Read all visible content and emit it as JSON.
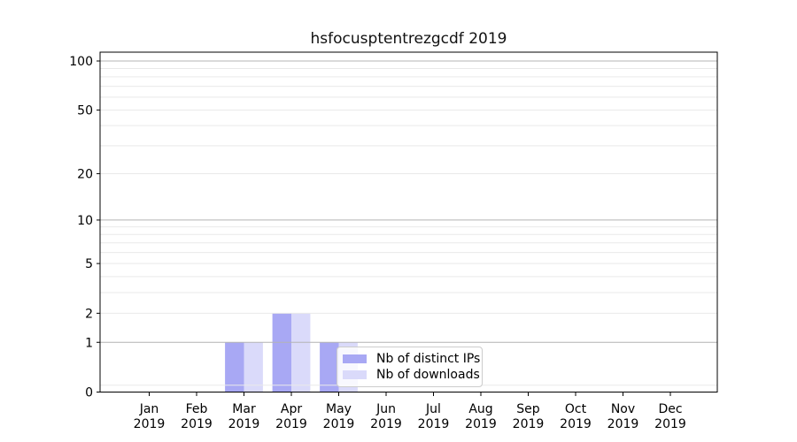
{
  "figure": {
    "title": "hsfocusptentrezgcdf 2019"
  },
  "legend": {
    "items": [
      {
        "label": "Nb of distinct IPs",
        "color": "#a8a8f4"
      },
      {
        "label": "Nb of downloads",
        "color": "#dadafa"
      }
    ]
  },
  "axes": {
    "y_tick_labels": [
      "0",
      "1",
      "2",
      "5",
      "10",
      "20",
      "50",
      "100"
    ],
    "x_tick_year": "2019",
    "x_tick_months": [
      "Jan",
      "Feb",
      "Mar",
      "Apr",
      "May",
      "Jun",
      "Jul",
      "Aug",
      "Sep",
      "Oct",
      "Nov",
      "Dec"
    ]
  },
  "colors": {
    "grid_major": "#b4b4b4",
    "grid_minor": "#e9e9e9",
    "axis_frame": "#000000",
    "text": "#000000",
    "background": "#ffffff"
  },
  "chart_data": {
    "type": "bar",
    "title": "hsfocusptentrezgcdf 2019",
    "categories": [
      "Jan 2019",
      "Feb 2019",
      "Mar 2019",
      "Apr 2019",
      "May 2019",
      "Jun 2019",
      "Jul 2019",
      "Aug 2019",
      "Sep 2019",
      "Oct 2019",
      "Nov 2019",
      "Dec 2019"
    ],
    "series": [
      {
        "name": "Nb of distinct IPs",
        "color": "#a8a8f4",
        "values": [
          0,
          0,
          1,
          2,
          1,
          0,
          0,
          0,
          0,
          0,
          0,
          0
        ]
      },
      {
        "name": "Nb of downloads",
        "color": "#dadafa",
        "values": [
          0,
          0,
          1,
          2,
          1,
          0,
          0,
          0,
          0,
          0,
          0,
          0
        ]
      }
    ],
    "xlabel": "",
    "ylabel": "",
    "yscale": "log1p",
    "ylim": [
      0,
      113
    ],
    "y_ticks": [
      0,
      1,
      2,
      5,
      10,
      20,
      50,
      100
    ],
    "y_major_gridlines": [
      1,
      10,
      100
    ],
    "y_minor_gridlines": [
      0.1,
      2,
      3,
      4,
      5,
      6,
      7,
      8,
      9,
      20,
      30,
      40,
      50,
      60,
      70,
      80,
      90
    ],
    "grid": true,
    "legend_position": "inside lower center"
  }
}
